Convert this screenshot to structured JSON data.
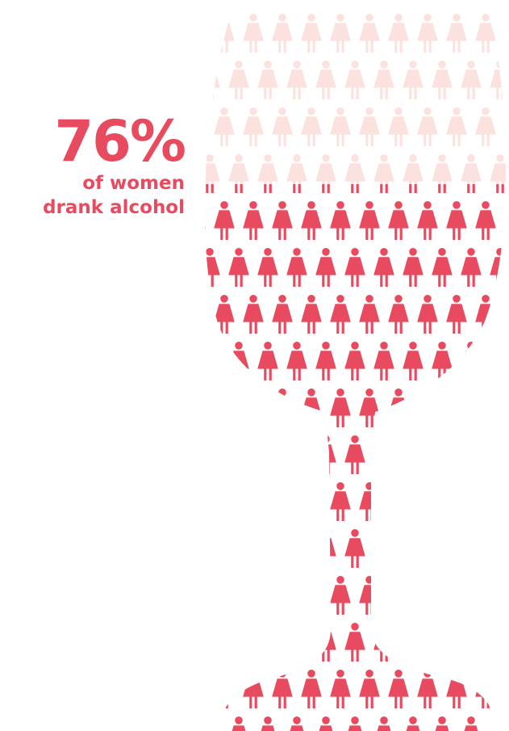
{
  "stat": {
    "percent": "76%",
    "line1": "of women",
    "line2": "drank alcohol",
    "filled_fraction": 0.76
  },
  "colors": {
    "accent": "#e84a5f",
    "faded": "#fbe2df",
    "background": "#ffffff"
  },
  "icon": "woman-figure-icon"
}
